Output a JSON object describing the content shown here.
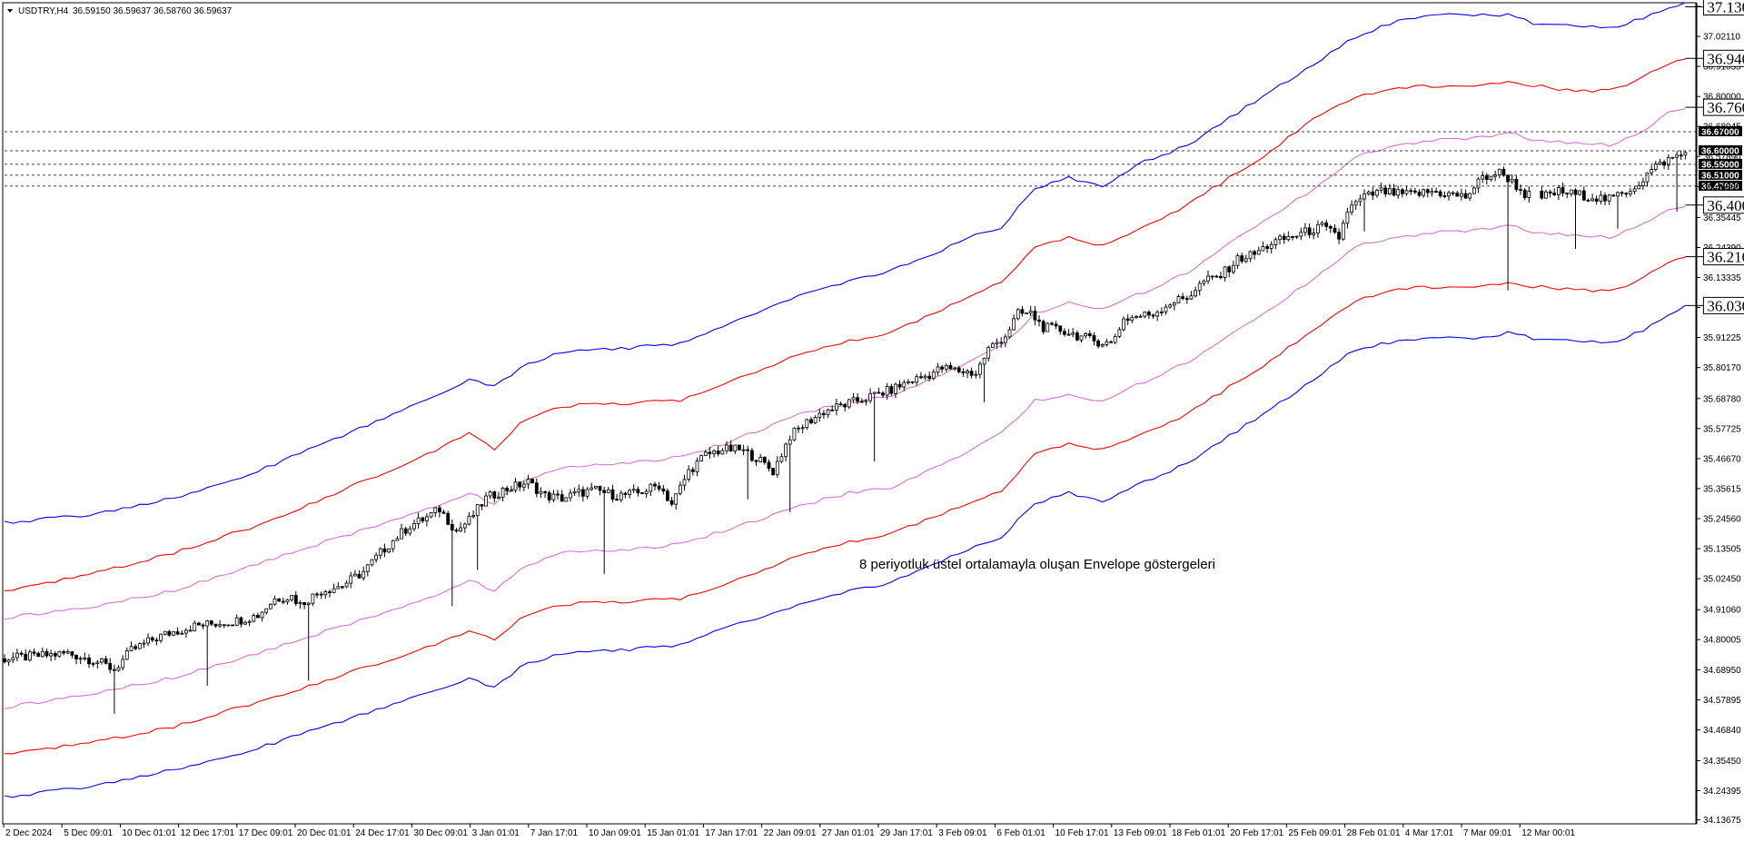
{
  "header": {
    "symbol": "USDTRY,H4",
    "ohlc": "36.59150 36.59637 36.58760 36.59637"
  },
  "chart_data": {
    "type": "line",
    "ylim": [
      34.122,
      37.145
    ],
    "y_ticks": [
      "37.13165",
      "37.02110",
      "36.91055",
      "36.80000",
      "36.68945",
      "36.57890",
      "36.46835",
      "36.35445",
      "36.24390",
      "36.13335",
      "36.02280",
      "35.91225",
      "35.80170",
      "35.68780",
      "35.57725",
      "35.46670",
      "35.35615",
      "35.24560",
      "35.13505",
      "35.02450",
      "34.91060",
      "34.80005",
      "34.68950",
      "34.57895",
      "34.46840",
      "34.35450",
      "34.24395",
      "34.13675"
    ],
    "x_ticks": [
      "2 Dec 2024",
      "5 Dec 09:01",
      "10 Dec 01:01",
      "12 Dec 17:01",
      "17 Dec 09:01",
      "20 Dec 01:01",
      "24 Dec 17:01",
      "30 Dec 09:01",
      "3 Jan 01:01",
      "7 Jan 17:01",
      "10 Jan 09:01",
      "15 Jan 01:01",
      "17 Jan 17:01",
      "22 Jan 09:01",
      "27 Jan 01:01",
      "29 Jan 17:01",
      "3 Feb 09:01",
      "6 Feb 01:01",
      "10 Feb 17:01",
      "13 Feb 09:01",
      "18 Feb 01:01",
      "20 Feb 17:01",
      "25 Feb 09:01",
      "28 Feb 01:01",
      "4 Mar 17:01",
      "7 Mar 09:01",
      "12 Mar 00:01"
    ],
    "price_labels": [
      "36.67000",
      "36.60000",
      "36.55000",
      "36.51000",
      "36.47000"
    ],
    "level_labels": [
      {
        "text": "37.13000",
        "color": "#0000ff"
      },
      {
        "text": "36.94000",
        "color": "#ff0000"
      },
      {
        "text": "36.76000",
        "color": "#da70d6"
      },
      {
        "text": "36.40000",
        "color": "#da70d6"
      },
      {
        "text": "36.21000",
        "color": "#ff0000"
      },
      {
        "text": "36.03000",
        "color": "#0000ff"
      }
    ],
    "annotation": "8 periyotluk üstel ortalamayla oluşan Envelope göstergeleri",
    "price_path": [
      [
        0,
        34.73
      ],
      [
        8,
        34.74
      ],
      [
        15,
        34.75
      ],
      [
        22,
        34.72
      ],
      [
        26,
        34.69
      ],
      [
        30,
        34.76
      ],
      [
        35,
        34.8
      ],
      [
        38,
        34.82
      ],
      [
        45,
        34.85
      ],
      [
        50,
        34.86
      ],
      [
        55,
        34.87
      ],
      [
        60,
        34.89
      ],
      [
        64,
        34.95
      ],
      [
        68,
        34.96
      ],
      [
        70,
        34.93
      ],
      [
        75,
        34.98
      ],
      [
        80,
        35.0
      ],
      [
        85,
        35.05
      ],
      [
        89,
        35.12
      ],
      [
        93,
        35.18
      ],
      [
        96,
        35.22
      ],
      [
        100,
        35.25
      ],
      [
        103,
        35.28
      ],
      [
        107,
        35.2
      ],
      [
        110,
        35.24
      ],
      [
        114,
        35.32
      ],
      [
        118,
        35.35
      ],
      [
        120,
        35.36
      ],
      [
        124,
        35.38
      ],
      [
        128,
        35.33
      ],
      [
        132,
        35.32
      ],
      [
        136,
        35.34
      ],
      [
        140,
        35.35
      ],
      [
        145,
        35.33
      ],
      [
        150,
        35.34
      ],
      [
        155,
        35.37
      ],
      [
        158,
        35.3
      ],
      [
        162,
        35.42
      ],
      [
        166,
        35.48
      ],
      [
        170,
        35.5
      ],
      [
        174,
        35.5
      ],
      [
        178,
        35.47
      ],
      [
        182,
        35.42
      ],
      [
        186,
        35.55
      ],
      [
        190,
        35.6
      ],
      [
        194,
        35.64
      ],
      [
        198,
        35.66
      ],
      [
        202,
        35.68
      ],
      [
        206,
        35.7
      ],
      [
        210,
        35.72
      ],
      [
        214,
        35.75
      ],
      [
        218,
        35.77
      ],
      [
        222,
        35.8
      ],
      [
        226,
        35.79
      ],
      [
        230,
        35.78
      ],
      [
        233,
        35.87
      ],
      [
        237,
        35.92
      ],
      [
        240,
        36.0
      ],
      [
        243,
        36.0
      ],
      [
        246,
        35.95
      ],
      [
        250,
        35.94
      ],
      [
        254,
        35.92
      ],
      [
        258,
        35.9
      ],
      [
        262,
        35.89
      ],
      [
        265,
        35.98
      ],
      [
        268,
        35.99
      ],
      [
        272,
        36.0
      ],
      [
        276,
        36.04
      ],
      [
        280,
        36.06
      ],
      [
        284,
        36.12
      ],
      [
        288,
        36.14
      ],
      [
        292,
        36.2
      ],
      [
        296,
        36.22
      ],
      [
        300,
        36.26
      ],
      [
        304,
        36.28
      ],
      [
        308,
        36.3
      ],
      [
        312,
        36.32
      ],
      [
        316,
        36.28
      ],
      [
        318,
        36.38
      ],
      [
        322,
        36.43
      ],
      [
        326,
        36.45
      ],
      [
        330,
        36.44
      ],
      [
        334,
        36.44
      ],
      [
        338,
        36.45
      ],
      [
        342,
        36.44
      ],
      [
        346,
        36.43
      ],
      [
        350,
        36.5
      ],
      [
        354,
        36.52
      ],
      [
        356,
        36.5
      ],
      [
        360,
        36.44
      ],
      [
        364,
        36.43
      ],
      [
        368,
        36.45
      ],
      [
        372,
        36.44
      ],
      [
        376,
        36.43
      ],
      [
        380,
        36.42
      ],
      [
        384,
        36.45
      ],
      [
        387,
        36.48
      ],
      [
        390,
        36.53
      ],
      [
        393,
        36.56
      ],
      [
        396,
        36.58
      ],
      [
        398,
        36.59
      ]
    ],
    "upper_blue": [
      [
        0,
        35.23
      ],
      [
        20,
        35.26
      ],
      [
        40,
        35.32
      ],
      [
        60,
        35.42
      ],
      [
        80,
        35.55
      ],
      [
        100,
        35.68
      ],
      [
        110,
        35.76
      ],
      [
        116,
        35.73
      ],
      [
        122,
        35.8
      ],
      [
        132,
        35.86
      ],
      [
        145,
        35.87
      ],
      [
        160,
        35.89
      ],
      [
        170,
        35.95
      ],
      [
        180,
        36.02
      ],
      [
        190,
        36.08
      ],
      [
        200,
        36.12
      ],
      [
        210,
        36.16
      ],
      [
        220,
        36.22
      ],
      [
        228,
        36.28
      ],
      [
        236,
        36.32
      ],
      [
        244,
        36.46
      ],
      [
        252,
        36.5
      ],
      [
        260,
        36.47
      ],
      [
        270,
        36.56
      ],
      [
        280,
        36.62
      ],
      [
        290,
        36.72
      ],
      [
        300,
        36.82
      ],
      [
        310,
        36.92
      ],
      [
        320,
        37.02
      ],
      [
        330,
        37.08
      ],
      [
        340,
        37.1
      ],
      [
        350,
        37.1
      ],
      [
        356,
        37.1
      ],
      [
        362,
        37.07
      ],
      [
        372,
        37.06
      ],
      [
        380,
        37.05
      ],
      [
        388,
        37.09
      ],
      [
        394,
        37.13
      ],
      [
        398,
        37.145
      ]
    ],
    "upper_red": [
      [
        0,
        34.98
      ],
      [
        20,
        35.04
      ],
      [
        40,
        35.12
      ],
      [
        60,
        35.22
      ],
      [
        80,
        35.35
      ],
      [
        100,
        35.48
      ],
      [
        110,
        35.56
      ],
      [
        116,
        35.5
      ],
      [
        122,
        35.6
      ],
      [
        132,
        35.66
      ],
      [
        145,
        35.67
      ],
      [
        160,
        35.68
      ],
      [
        170,
        35.74
      ],
      [
        180,
        35.8
      ],
      [
        190,
        35.86
      ],
      [
        200,
        35.9
      ],
      [
        210,
        35.93
      ],
      [
        220,
        36.0
      ],
      [
        228,
        36.06
      ],
      [
        236,
        36.12
      ],
      [
        244,
        36.24
      ],
      [
        252,
        36.28
      ],
      [
        260,
        36.25
      ],
      [
        270,
        36.32
      ],
      [
        280,
        36.4
      ],
      [
        290,
        36.5
      ],
      [
        300,
        36.6
      ],
      [
        310,
        36.72
      ],
      [
        320,
        36.8
      ],
      [
        330,
        36.83
      ],
      [
        340,
        36.84
      ],
      [
        350,
        36.84
      ],
      [
        356,
        36.86
      ],
      [
        362,
        36.84
      ],
      [
        372,
        36.82
      ],
      [
        380,
        36.82
      ],
      [
        388,
        36.87
      ],
      [
        394,
        36.92
      ],
      [
        398,
        36.94
      ]
    ],
    "upper_violet": [
      [
        0,
        34.88
      ],
      [
        20,
        34.92
      ],
      [
        40,
        34.98
      ],
      [
        60,
        35.08
      ],
      [
        80,
        35.18
      ],
      [
        100,
        35.28
      ],
      [
        110,
        35.34
      ],
      [
        116,
        35.3
      ],
      [
        122,
        35.38
      ],
      [
        132,
        35.43
      ],
      [
        145,
        35.45
      ],
      [
        160,
        35.47
      ],
      [
        170,
        35.52
      ],
      [
        180,
        35.58
      ],
      [
        190,
        35.64
      ],
      [
        200,
        35.67
      ],
      [
        210,
        35.7
      ],
      [
        220,
        35.76
      ],
      [
        228,
        35.82
      ],
      [
        236,
        35.88
      ],
      [
        244,
        36.0
      ],
      [
        252,
        36.04
      ],
      [
        260,
        36.02
      ],
      [
        270,
        36.08
      ],
      [
        280,
        36.15
      ],
      [
        290,
        36.26
      ],
      [
        300,
        36.36
      ],
      [
        310,
        36.46
      ],
      [
        320,
        36.58
      ],
      [
        330,
        36.62
      ],
      [
        340,
        36.64
      ],
      [
        350,
        36.65
      ],
      [
        356,
        36.67
      ],
      [
        362,
        36.64
      ],
      [
        372,
        36.63
      ],
      [
        380,
        36.62
      ],
      [
        388,
        36.67
      ],
      [
        394,
        36.74
      ],
      [
        398,
        36.76
      ]
    ],
    "lower_violet": [
      [
        0,
        34.55
      ],
      [
        20,
        34.6
      ],
      [
        40,
        34.66
      ],
      [
        60,
        34.75
      ],
      [
        80,
        34.85
      ],
      [
        100,
        34.95
      ],
      [
        110,
        35.02
      ],
      [
        116,
        34.98
      ],
      [
        122,
        35.06
      ],
      [
        132,
        35.12
      ],
      [
        145,
        35.13
      ],
      [
        160,
        35.15
      ],
      [
        170,
        35.2
      ],
      [
        180,
        35.25
      ],
      [
        190,
        35.3
      ],
      [
        200,
        35.34
      ],
      [
        210,
        35.36
      ],
      [
        220,
        35.43
      ],
      [
        228,
        35.49
      ],
      [
        236,
        35.56
      ],
      [
        244,
        35.68
      ],
      [
        252,
        35.7
      ],
      [
        260,
        35.68
      ],
      [
        270,
        35.75
      ],
      [
        280,
        35.82
      ],
      [
        290,
        35.92
      ],
      [
        300,
        36.02
      ],
      [
        310,
        36.13
      ],
      [
        320,
        36.25
      ],
      [
        330,
        36.28
      ],
      [
        340,
        36.3
      ],
      [
        350,
        36.31
      ],
      [
        356,
        36.33
      ],
      [
        362,
        36.3
      ],
      [
        372,
        36.29
      ],
      [
        380,
        36.28
      ],
      [
        388,
        36.33
      ],
      [
        394,
        36.38
      ],
      [
        398,
        36.4
      ]
    ],
    "lower_red": [
      [
        0,
        34.38
      ],
      [
        20,
        34.42
      ],
      [
        40,
        34.48
      ],
      [
        60,
        34.57
      ],
      [
        80,
        34.67
      ],
      [
        100,
        34.77
      ],
      [
        110,
        34.83
      ],
      [
        116,
        34.8
      ],
      [
        122,
        34.88
      ],
      [
        132,
        34.93
      ],
      [
        145,
        34.94
      ],
      [
        160,
        34.95
      ],
      [
        170,
        35.0
      ],
      [
        180,
        35.06
      ],
      [
        190,
        35.12
      ],
      [
        200,
        35.16
      ],
      [
        210,
        35.19
      ],
      [
        220,
        35.25
      ],
      [
        228,
        35.3
      ],
      [
        236,
        35.35
      ],
      [
        244,
        35.48
      ],
      [
        252,
        35.52
      ],
      [
        260,
        35.5
      ],
      [
        270,
        35.56
      ],
      [
        280,
        35.63
      ],
      [
        290,
        35.73
      ],
      [
        300,
        35.83
      ],
      [
        310,
        35.94
      ],
      [
        320,
        36.05
      ],
      [
        330,
        36.09
      ],
      [
        340,
        36.1
      ],
      [
        350,
        36.1
      ],
      [
        356,
        36.12
      ],
      [
        362,
        36.1
      ],
      [
        372,
        36.09
      ],
      [
        380,
        36.08
      ],
      [
        388,
        36.13
      ],
      [
        394,
        36.19
      ],
      [
        398,
        36.21
      ]
    ],
    "lower_blue": [
      [
        0,
        34.22
      ],
      [
        20,
        34.26
      ],
      [
        40,
        34.32
      ],
      [
        60,
        34.4
      ],
      [
        80,
        34.5
      ],
      [
        100,
        34.6
      ],
      [
        110,
        34.66
      ],
      [
        116,
        34.62
      ],
      [
        122,
        34.7
      ],
      [
        132,
        34.75
      ],
      [
        145,
        34.76
      ],
      [
        160,
        34.78
      ],
      [
        170,
        34.84
      ],
      [
        180,
        34.89
      ],
      [
        190,
        34.94
      ],
      [
        200,
        34.98
      ],
      [
        210,
        35.01
      ],
      [
        220,
        35.08
      ],
      [
        228,
        35.13
      ],
      [
        236,
        35.18
      ],
      [
        244,
        35.3
      ],
      [
        252,
        35.34
      ],
      [
        260,
        35.31
      ],
      [
        270,
        35.38
      ],
      [
        280,
        35.45
      ],
      [
        290,
        35.55
      ],
      [
        300,
        35.65
      ],
      [
        310,
        35.76
      ],
      [
        320,
        35.87
      ],
      [
        330,
        35.9
      ],
      [
        340,
        35.91
      ],
      [
        350,
        35.91
      ],
      [
        356,
        35.93
      ],
      [
        362,
        35.91
      ],
      [
        372,
        35.9
      ],
      [
        380,
        35.89
      ],
      [
        388,
        35.94
      ],
      [
        394,
        36.0
      ],
      [
        398,
        36.03
      ]
    ]
  }
}
